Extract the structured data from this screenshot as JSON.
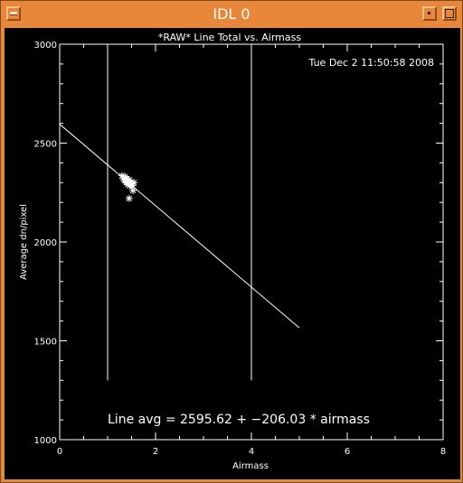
{
  "window": {
    "title": "IDL 0"
  },
  "chart_data": {
    "type": "scatter",
    "title": "*RAW* Line Total vs. Airmass",
    "xlabel": "Airmass",
    "ylabel": "Average dn/pixel",
    "timestamp": "Tue Dec  2 11:50:58 2008",
    "xlim": [
      0,
      8
    ],
    "ylim": [
      1000,
      3000
    ],
    "xticks": [
      0,
      2,
      4,
      6,
      8
    ],
    "yticks": [
      1000,
      1500,
      2000,
      2500,
      3000
    ],
    "xtick_labels": [
      "0",
      "2",
      "4",
      "6",
      "8"
    ],
    "ytick_labels": [
      "1000",
      "1500",
      "2000",
      "2500",
      "3000"
    ],
    "fit": {
      "intercept": 2595.62,
      "slope": -206.03,
      "x_range": [
        0,
        5
      ]
    },
    "vertical_lines": {
      "x": [
        1,
        4
      ],
      "y_range": [
        1300,
        3000
      ]
    },
    "annotation": "Line avg = 2595.62 + −206.03 * airmass",
    "points": [
      {
        "x": 1.3,
        "y": 2335
      },
      {
        "x": 1.33,
        "y": 2320
      },
      {
        "x": 1.35,
        "y": 2310
      },
      {
        "x": 1.37,
        "y": 2330
      },
      {
        "x": 1.39,
        "y": 2300
      },
      {
        "x": 1.4,
        "y": 2320
      },
      {
        "x": 1.42,
        "y": 2290
      },
      {
        "x": 1.43,
        "y": 2305
      },
      {
        "x": 1.45,
        "y": 2315
      },
      {
        "x": 1.46,
        "y": 2285
      },
      {
        "x": 1.48,
        "y": 2300
      },
      {
        "x": 1.5,
        "y": 2295
      },
      {
        "x": 1.52,
        "y": 2285
      },
      {
        "x": 1.55,
        "y": 2300
      },
      {
        "x": 1.53,
        "y": 2260
      },
      {
        "x": 1.45,
        "y": 2220
      }
    ]
  }
}
